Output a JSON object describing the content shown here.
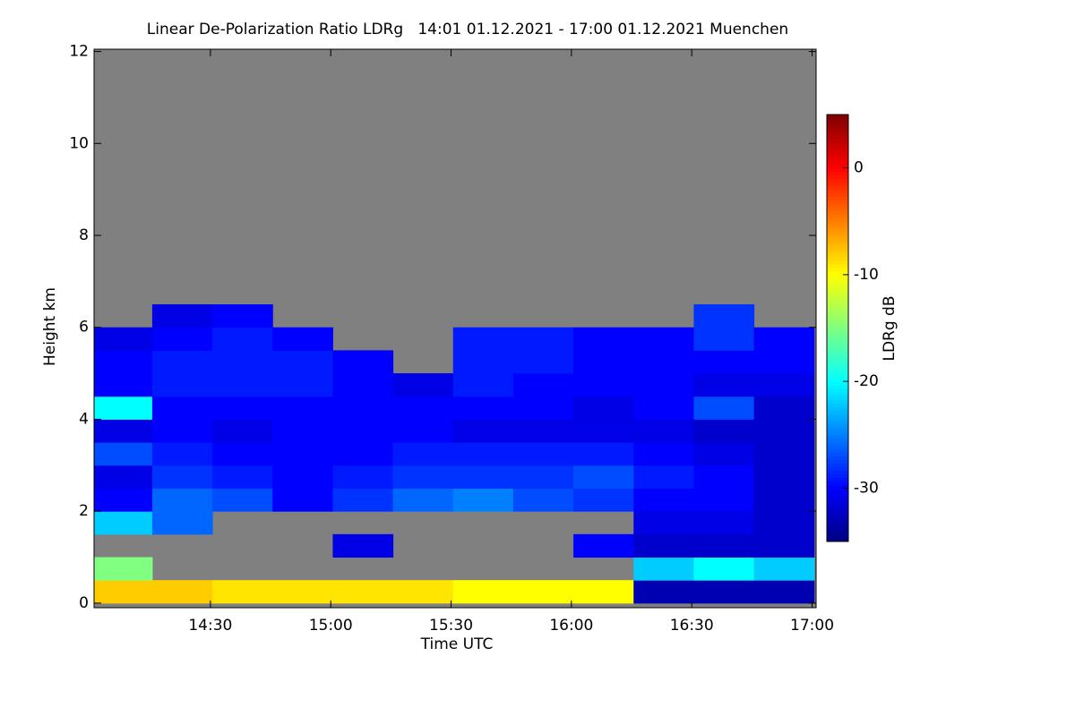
{
  "chart_data": {
    "type": "heatmap",
    "title": "Linear De-Polarization Ratio LDRg   14:01 01.12.2021 - 17:00 01.12.2021 Muenchen",
    "x_label": "Time UTC",
    "y_label": "Height km",
    "colorbar_label": "LDRg dB",
    "x": [
      848,
      863,
      878,
      893,
      908,
      923,
      938,
      953,
      968,
      983,
      998,
      1013
    ],
    "y": [
      0.25,
      0.75,
      1.25,
      1.75,
      2.25,
      2.75,
      3.25,
      3.75,
      4.25,
      4.75,
      5.25,
      5.75,
      6.25
    ],
    "z": [
      [
        -8,
        -8,
        -9,
        -9,
        -9,
        -9,
        -10,
        -10,
        -10,
        -33,
        -33,
        -33
      ],
      [
        -15,
        null,
        null,
        null,
        null,
        null,
        null,
        null,
        null,
        -22,
        -20,
        -22
      ],
      [
        null,
        null,
        null,
        null,
        -31,
        null,
        null,
        null,
        -30,
        -32,
        -32,
        -32
      ],
      [
        -22,
        -26,
        null,
        null,
        null,
        null,
        null,
        null,
        null,
        -31,
        -31,
        -32
      ],
      [
        -30,
        -26,
        -27,
        -30,
        -28,
        -26,
        -25,
        -27,
        -28,
        -30,
        -30,
        -32
      ],
      [
        -31,
        -28,
        -29,
        -30,
        -29,
        -28,
        -28,
        -28,
        -27,
        -29,
        -30,
        -32
      ],
      [
        -27,
        -29,
        -30,
        -30,
        -30,
        -29,
        -29,
        -29,
        -29,
        -30,
        -31,
        -32
      ],
      [
        -31,
        -30,
        -31,
        -30,
        -30,
        -30,
        -31,
        -31,
        -31,
        -31,
        -32,
        -32
      ],
      [
        -20,
        -30,
        -30,
        -30,
        -30,
        -30,
        -30,
        -30,
        -31,
        -30,
        -27,
        -32
      ],
      [
        -30,
        -29,
        -29,
        -29,
        -30,
        -31,
        -29,
        -30,
        -30,
        -30,
        -31,
        -31
      ],
      [
        -30,
        -29,
        -29,
        -29,
        -30,
        null,
        -29,
        -29,
        -30,
        -30,
        -30,
        -30
      ],
      [
        -31,
        -30,
        -29,
        -30,
        null,
        null,
        -29,
        -29,
        -30,
        -30,
        -28,
        -30
      ],
      [
        null,
        -31,
        -30,
        null,
        null,
        null,
        null,
        null,
        null,
        null,
        -28,
        null
      ]
    ],
    "missing_color": "#808080",
    "colormap": "jet",
    "xlim": [
      841,
      1021
    ],
    "ylim": [
      -0.1,
      12.05
    ],
    "clim": [
      -35,
      5
    ],
    "xticks": [
      {
        "value": 870,
        "label": "14:30"
      },
      {
        "value": 900,
        "label": "15:00"
      },
      {
        "value": 930,
        "label": "15:30"
      },
      {
        "value": 960,
        "label": "16:00"
      },
      {
        "value": 990,
        "label": "16:30"
      },
      {
        "value": 1020,
        "label": "17:00"
      }
    ],
    "yticks": [
      0,
      2,
      4,
      6,
      8,
      10,
      12
    ],
    "cticks": [
      0,
      -10,
      -20,
      -30
    ]
  }
}
